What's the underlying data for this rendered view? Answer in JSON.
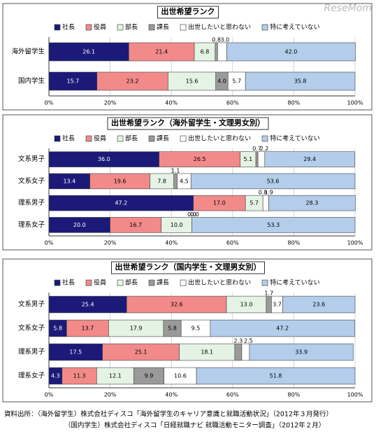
{
  "chart_data": [
    {
      "type": "stacked-barh",
      "title": "出世希望ランク",
      "categories": [
        "海外留学生",
        "国内学生"
      ],
      "series": [
        {
          "name": "社長",
          "color": "#1b1a78",
          "values": [
            26.1,
            15.7
          ],
          "value_labels": [
            "26.1",
            "15.7"
          ]
        },
        {
          "name": "役員",
          "color": "#f28a8a",
          "values": [
            21.4,
            23.2
          ],
          "value_labels": [
            "21.4",
            "23.2"
          ]
        },
        {
          "name": "部長",
          "color": "#e4f3e4",
          "values": [
            6.8,
            15.6
          ],
          "value_labels": [
            "6.8",
            "15.6"
          ]
        },
        {
          "name": "課長",
          "color": "#9a9a9a",
          "values": [
            0.8,
            4.0
          ],
          "value_labels": [
            "0.8",
            "4.0"
          ]
        },
        {
          "name": "出世したいと思わない",
          "color": "#ffffff",
          "values": [
            3.0,
            5.7
          ],
          "value_labels": [
            "3.0",
            "5.7"
          ]
        },
        {
          "name": "特に考えていない",
          "color": "#b3cdea",
          "values": [
            42.0,
            35.8
          ],
          "value_labels": [
            "42.0",
            "35.8"
          ]
        }
      ],
      "xlim": [
        0,
        100
      ],
      "xticks": [
        {
          "value": 0,
          "label": "0%"
        },
        {
          "value": 20,
          "label": "20%"
        },
        {
          "value": 40,
          "label": "40%"
        },
        {
          "value": 60,
          "label": "60%"
        },
        {
          "value": 80,
          "label": "80%"
        },
        {
          "value": 100,
          "label": "100%"
        }
      ]
    },
    {
      "type": "stacked-barh",
      "title": "出世希望ランク（海外留学生・文理男女別）",
      "categories": [
        "文系男子",
        "文系女子",
        "理系男子",
        "理系女子"
      ],
      "series": [
        {
          "name": "社長",
          "color": "#1b1a78",
          "values": [
            36.0,
            13.4,
            47.2,
            20.0
          ],
          "value_labels": [
            "36.0",
            "13.4",
            "47.2",
            "20.0"
          ]
        },
        {
          "name": "役員",
          "color": "#f28a8a",
          "values": [
            26.5,
            19.6,
            17.0,
            16.7
          ],
          "value_labels": [
            "26.5",
            "19.6",
            "17.0",
            "16.7"
          ]
        },
        {
          "name": "部長",
          "color": "#e4f3e4",
          "values": [
            5.1,
            7.8,
            5.7,
            10.0
          ],
          "value_labels": [
            "5.1",
            "7.8",
            "5.7",
            "10.0"
          ]
        },
        {
          "name": "課長",
          "color": "#9a9a9a",
          "values": [
            0.7,
            1.1,
            0.0,
            0.0
          ],
          "value_labels": [
            "0.7",
            "1.1",
            "0.0",
            "0.0"
          ]
        },
        {
          "name": "出世したいと思わない",
          "color": "#ffffff",
          "values": [
            2.2,
            4.5,
            1.9,
            0.0
          ],
          "value_labels": [
            "2.2",
            "4.5",
            "1.9",
            "0.0"
          ]
        },
        {
          "name": "特に考えていない",
          "color": "#b3cdea",
          "values": [
            29.4,
            53.6,
            28.3,
            53.3
          ],
          "value_labels": [
            "29.4",
            "53.6",
            "28.3",
            "53.3"
          ]
        }
      ],
      "xlim": [
        0,
        100
      ],
      "xticks": [
        {
          "value": 0,
          "label": "0%"
        },
        {
          "value": 20,
          "label": "20%"
        },
        {
          "value": 40,
          "label": "40%"
        },
        {
          "value": 60,
          "label": "60%"
        },
        {
          "value": 80,
          "label": "80%"
        },
        {
          "value": 100,
          "label": "100%"
        }
      ]
    },
    {
      "type": "stacked-barh",
      "title": "出世希望ランク（国内学生・文理男女別）",
      "categories": [
        "文系男子",
        "文系女子",
        "理系男子",
        "理系女子"
      ],
      "series": [
        {
          "name": "社長",
          "color": "#1b1a78",
          "values": [
            25.4,
            5.8,
            17.5,
            4.3
          ],
          "value_labels": [
            "25.4",
            "5.8",
            "17.5",
            "4.3"
          ]
        },
        {
          "name": "役員",
          "color": "#f28a8a",
          "values": [
            32.6,
            13.7,
            25.1,
            11.3
          ],
          "value_labels": [
            "32.6",
            "13.7",
            "25.1",
            "11.3"
          ]
        },
        {
          "name": "部長",
          "color": "#e4f3e4",
          "values": [
            13.0,
            17.9,
            18.1,
            12.1
          ],
          "value_labels": [
            "13.0",
            "17.9",
            "18.1",
            "12.1"
          ]
        },
        {
          "name": "課長",
          "color": "#9a9a9a",
          "values": [
            1.7,
            5.8,
            2.3,
            9.9
          ],
          "value_labels": [
            "1.7",
            "5.8",
            "2.3",
            "9.9"
          ]
        },
        {
          "name": "出世したいと思わない",
          "color": "#ffffff",
          "values": [
            3.7,
            9.5,
            2.5,
            10.6
          ],
          "value_labels": [
            "3.7",
            "9.5",
            "2.5",
            "10.6"
          ]
        },
        {
          "name": "特に考えていない",
          "color": "#b3cdea",
          "values": [
            23.6,
            47.2,
            33.9,
            51.8
          ],
          "value_labels": [
            "23.6",
            "47.2",
            "33.9",
            "51.8"
          ]
        }
      ],
      "xlim": [
        0,
        100
      ],
      "xticks": [
        {
          "value": 0,
          "label": "0%"
        },
        {
          "value": 20,
          "label": "20%"
        },
        {
          "value": 40,
          "label": "40%"
        },
        {
          "value": 60,
          "label": "60%"
        },
        {
          "value": 80,
          "label": "80%"
        },
        {
          "value": 100,
          "label": "100%"
        }
      ]
    }
  ],
  "watermark": "ReseMom",
  "source": [
    "資料出所：（海外留学生）株式会社ディスコ「海外留学生のキャリア意識と就職活動状況」（2012年３月発行）",
    "（国内学生）株式会社ディスコ「日経就職ナビ 就職活動モニター調査」（2012年２月）"
  ]
}
